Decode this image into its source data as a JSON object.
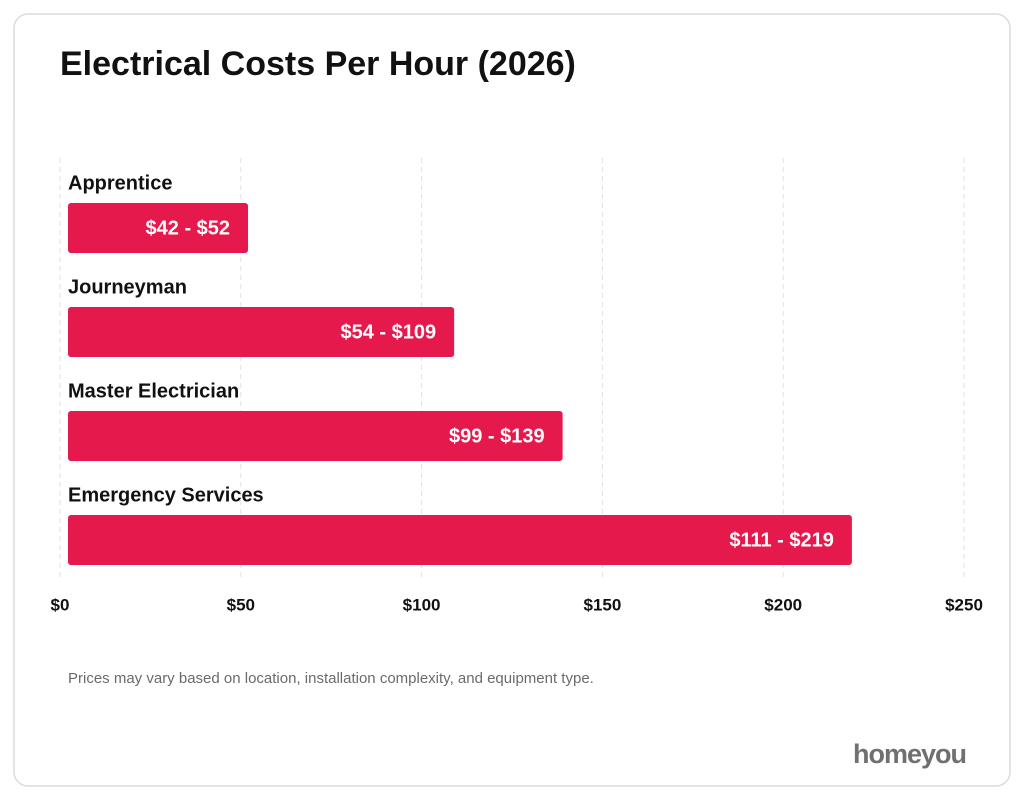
{
  "chart_data": {
    "type": "hbar",
    "title": "Electrical Costs Per Hour (2026)",
    "categories": [
      "Apprentice",
      "Journeyman",
      "Master Electrician",
      "Emergency Services"
    ],
    "values": [
      52,
      109,
      139,
      219
    ],
    "value_labels": [
      "$42 - $52",
      "$54 - $109",
      "$99 - $139",
      "$111 - $219"
    ],
    "color": "#e5194c",
    "xlim": [
      0,
      250
    ],
    "xticks": [
      {
        "value": 0,
        "label": "$0"
      },
      {
        "value": 50,
        "label": "$50"
      },
      {
        "value": 100,
        "label": "$100"
      },
      {
        "value": 150,
        "label": "$150"
      },
      {
        "value": 200,
        "label": "$200"
      },
      {
        "value": 250,
        "label": "$250"
      }
    ],
    "grid": true,
    "note": "Prices may vary based on location, installation complexity, and equipment type."
  },
  "logo": "homeyou"
}
